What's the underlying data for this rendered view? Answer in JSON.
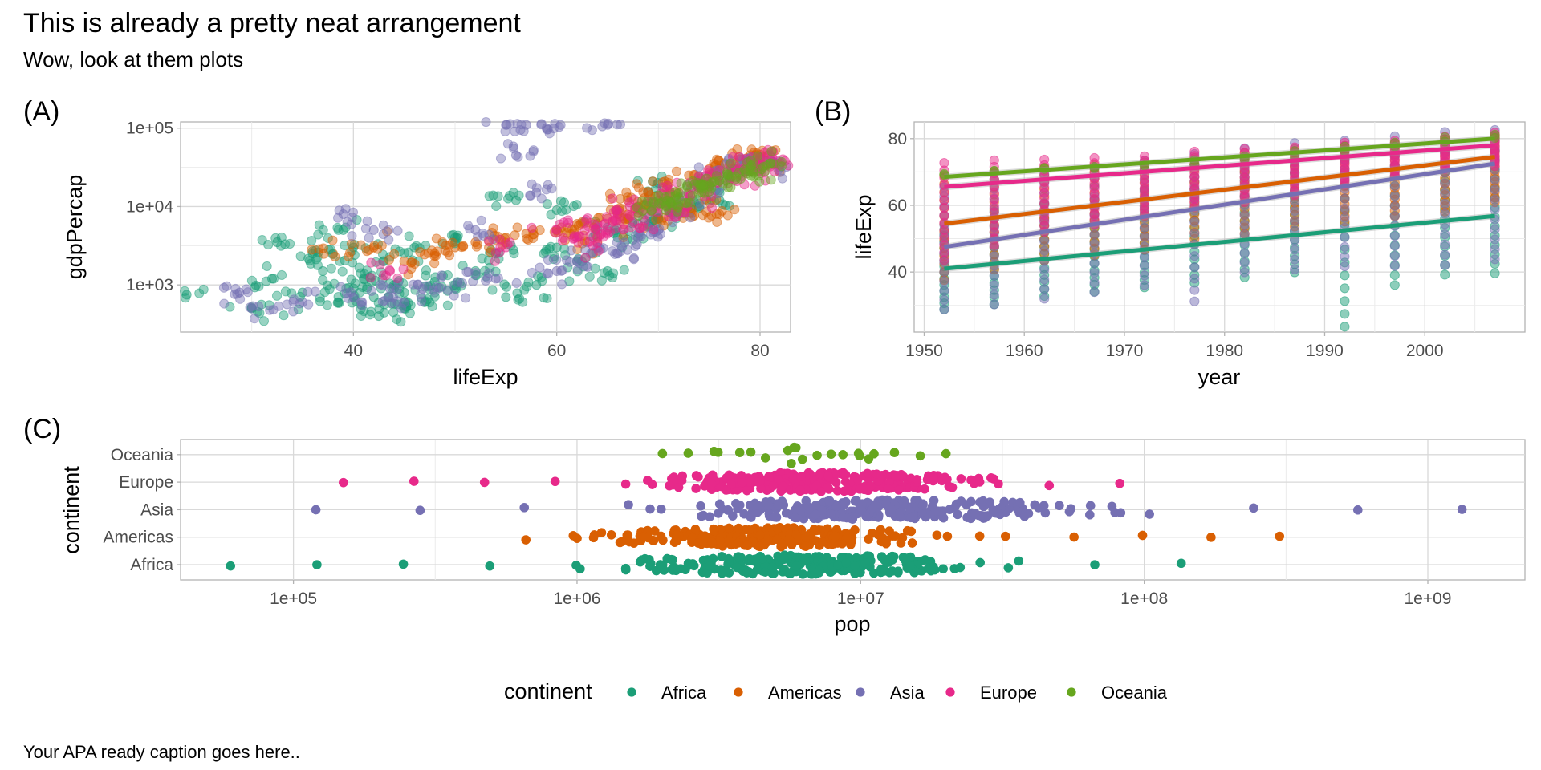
{
  "title": "This is already a pretty neat arrangement",
  "subtitle": "Wow, look at them plots",
  "caption": "Your APA ready caption goes here..",
  "colors": {
    "Africa": "#1b9e77",
    "Americas": "#d95f02",
    "Asia": "#7570b3",
    "Europe": "#e7298a",
    "Oceania": "#66a61e"
  },
  "legend": {
    "title": "continent",
    "position": "bottom",
    "items": [
      "Africa",
      "Americas",
      "Asia",
      "Europe",
      "Oceania"
    ]
  },
  "chart_data": [
    {
      "tag": "(A)",
      "type": "scatter",
      "xlabel": "lifeExp",
      "ylabel": "gdpPercap",
      "x_scale": "linear",
      "y_scale": "log10",
      "xlim": [
        23,
        83
      ],
      "ylim": [
        250,
        120000
      ],
      "x_ticks": [
        40,
        60,
        80
      ],
      "x_tick_labels": [
        "40",
        "60",
        "80"
      ],
      "y_ticks": [
        1000,
        10000,
        100000
      ],
      "y_tick_labels": [
        "1e+03",
        "1e+04",
        "1e+05"
      ],
      "grid": true,
      "point_alpha": 0.5,
      "series": [
        {
          "continent": "Africa",
          "x": [
            23.6,
            30.0,
            32.5,
            35.0,
            37.0,
            38.5,
            39.0,
            40.0,
            41.0,
            42.0,
            42.5,
            43.0,
            44.0,
            45.0,
            46.0,
            47.0,
            48.0,
            50.0,
            52.0,
            54.0,
            56.0,
            58.0,
            60.0,
            62.0,
            64.0,
            66.0,
            68.0,
            70.0,
            72.0,
            74.0,
            76.0,
            32.0,
            36.0,
            40.0,
            45.0,
            50.0,
            55.0,
            60.0,
            65.0,
            70.0
          ],
          "y": [
            750,
            500,
            3500,
            800,
            1500,
            600,
            5000,
            900,
            1200,
            700,
            400,
            2000,
            1000,
            800,
            3000,
            600,
            1100,
            900,
            1500,
            2500,
            12000,
            1000,
            3000,
            2000,
            5000,
            4000,
            6000,
            7000,
            8000,
            10000,
            12000,
            1200,
            2500,
            3000,
            500,
            4000,
            700,
            9000,
            1500,
            20000
          ]
        },
        {
          "continent": "Americas",
          "x": [
            38.0,
            42.0,
            45.0,
            48.0,
            50.0,
            52.0,
            55.0,
            57.0,
            60.0,
            62.0,
            64.0,
            65.0,
            66.0,
            67.0,
            68.0,
            69.0,
            70.0,
            71.0,
            72.0,
            73.0,
            74.0,
            75.0,
            76.0,
            77.0,
            78.0,
            79.0,
            80.0,
            81.0
          ],
          "y": [
            2500,
            3000,
            2000,
            2500,
            3000,
            3500,
            4000,
            4500,
            5000,
            6000,
            3500,
            7000,
            8000,
            12000,
            10000,
            15000,
            7000,
            20000,
            9000,
            25000,
            11000,
            30000,
            8000,
            35000,
            40000,
            38000,
            42000,
            36000
          ]
        },
        {
          "continent": "Asia",
          "x": [
            28.8,
            30.0,
            35.0,
            39.0,
            40.0,
            42.0,
            44.0,
            45.0,
            48.0,
            50.0,
            52.0,
            54.0,
            55.0,
            56.0,
            57.0,
            58.0,
            59.0,
            60.0,
            62.0,
            64.0,
            65.0,
            66.0,
            68.0,
            70.0,
            72.0,
            74.0,
            76.0,
            78.0,
            80.0,
            82.6
          ],
          "y": [
            800,
            500,
            600,
            8000,
            700,
            5000,
            900,
            600,
            800,
            1000,
            5000,
            1200,
            110000,
            45000,
            110000,
            15000,
            100000,
            1500,
            2000,
            3000,
            110000,
            2500,
            4000,
            5000,
            10000,
            20000,
            30000,
            35000,
            40000,
            32000
          ]
        },
        {
          "continent": "Europe",
          "x": [
            43.6,
            55.0,
            60.0,
            62.0,
            63.0,
            64.0,
            65.0,
            66.0,
            67.0,
            68.0,
            69.0,
            70.0,
            71.0,
            72.0,
            73.0,
            74.0,
            75.0,
            76.0,
            77.0,
            78.0,
            79.0,
            80.0,
            81.0,
            82.0
          ],
          "y": [
            1500,
            3000,
            5000,
            4000,
            3500,
            6000,
            5000,
            8000,
            7000,
            10000,
            6000,
            12000,
            9000,
            15000,
            11000,
            20000,
            18000,
            25000,
            22000,
            30000,
            28000,
            35000,
            40000,
            36000
          ]
        },
        {
          "continent": "Oceania",
          "x": [
            69.1,
            70.0,
            71.0,
            72.0,
            73.0,
            74.0,
            75.0,
            76.0,
            77.0,
            78.0,
            79.0,
            80.0,
            81.0
          ],
          "y": [
            10000,
            11000,
            12000,
            13000,
            15000,
            17000,
            19000,
            21000,
            23000,
            26000,
            28000,
            32000,
            34000
          ]
        }
      ]
    },
    {
      "tag": "(B)",
      "type": "scatter",
      "xlabel": "year",
      "ylabel": "lifeExp",
      "x_scale": "linear",
      "y_scale": "linear",
      "xlim": [
        1949,
        2010
      ],
      "ylim": [
        22,
        85
      ],
      "x_ticks": [
        1950,
        1960,
        1970,
        1980,
        1990,
        2000
      ],
      "x_tick_labels": [
        "1950",
        "1960",
        "1970",
        "1980",
        "1990",
        "2000"
      ],
      "y_ticks": [
        40,
        60,
        80
      ],
      "y_tick_labels": [
        "40",
        "60",
        "80"
      ],
      "grid": true,
      "point_alpha": 0.5,
      "x": [
        1952,
        1957,
        1962,
        1967,
        1972,
        1977,
        1982,
        1987,
        1992,
        1997,
        2002,
        2007
      ],
      "series": [
        {
          "continent": "Africa",
          "min": [
            28.8,
            30.3,
            32.8,
            34.1,
            35.4,
            36.8,
            38.4,
            39.9,
            23.6,
            36.1,
            39.2,
            39.6
          ],
          "max": [
            52.7,
            58.1,
            60.2,
            61.6,
            64.3,
            67.1,
            69.9,
            71.9,
            73.6,
            74.8,
            75.7,
            76.4
          ],
          "trend": [
            41.0,
            56.8
          ]
        },
        {
          "continent": "Americas",
          "min": [
            37.6,
            40.7,
            43.4,
            45.0,
            46.7,
            49.9,
            51.5,
            53.6,
            55.1,
            56.7,
            58.1,
            60.9
          ],
          "max": [
            68.8,
            70.0,
            71.3,
            72.1,
            72.9,
            74.2,
            75.8,
            76.9,
            77.9,
            78.6,
            79.8,
            80.7
          ],
          "trend": [
            54.5,
            74.5
          ]
        },
        {
          "continent": "Asia",
          "min": [
            28.8,
            30.3,
            32.0,
            34.0,
            36.1,
            31.2,
            39.9,
            40.8,
            41.7,
            41.8,
            42.1,
            43.8
          ],
          "max": [
            65.4,
            67.8,
            69.4,
            71.4,
            73.4,
            75.4,
            77.1,
            78.7,
            79.4,
            80.7,
            82.0,
            82.6
          ],
          "trend": [
            47.5,
            72.5
          ]
        },
        {
          "continent": "Europe",
          "min": [
            43.6,
            48.1,
            52.1,
            54.3,
            57.0,
            59.5,
            61.0,
            63.1,
            66.1,
            68.8,
            70.8,
            71.8
          ],
          "max": [
            72.7,
            73.5,
            73.7,
            74.2,
            74.7,
            76.1,
            76.9,
            77.4,
            78.8,
            79.4,
            80.6,
            81.8
          ],
          "trend": [
            65.5,
            78.0
          ]
        },
        {
          "continent": "Oceania",
          "min": [
            69.1,
            70.3,
            70.9,
            71.1,
            71.9,
            72.2,
            73.8,
            74.3,
            76.3,
            77.6,
            79.1,
            80.2
          ],
          "max": [
            69.4,
            70.3,
            71.2,
            71.5,
            71.9,
            73.5,
            74.7,
            76.3,
            77.6,
            78.8,
            80.4,
            81.2
          ],
          "trend": [
            68.5,
            80.0
          ]
        }
      ]
    },
    {
      "tag": "(C)",
      "type": "scatter",
      "xlabel": "pop",
      "ylabel": "continent",
      "x_scale": "log10",
      "xlim": [
        40000,
        2200000000
      ],
      "x_ticks": [
        100000,
        1000000,
        10000000,
        100000000,
        1000000000
      ],
      "x_tick_labels": [
        "1e+05",
        "1e+06",
        "1e+07",
        "1e+08",
        "1e+09"
      ],
      "categories": [
        "Africa",
        "Americas",
        "Asia",
        "Europe",
        "Oceania"
      ],
      "grid": true,
      "series": [
        {
          "continent": "Africa",
          "range": [
            60000,
            135000000
          ],
          "center": 6000000,
          "spread": 3.5
        },
        {
          "continent": "Americas",
          "range": [
            660000,
            300000000
          ],
          "center": 5000000,
          "spread": 3.0
        },
        {
          "continent": "Asia",
          "range": [
            120000,
            1320000000
          ],
          "center": 12000000,
          "spread": 3.5
        },
        {
          "continent": "Europe",
          "range": [
            150000,
            82000000
          ],
          "center": 7000000,
          "spread": 3.0
        },
        {
          "continent": "Oceania",
          "range": [
            2000000,
            20000000
          ],
          "center": 6000000,
          "spread": 1.5
        }
      ]
    }
  ]
}
